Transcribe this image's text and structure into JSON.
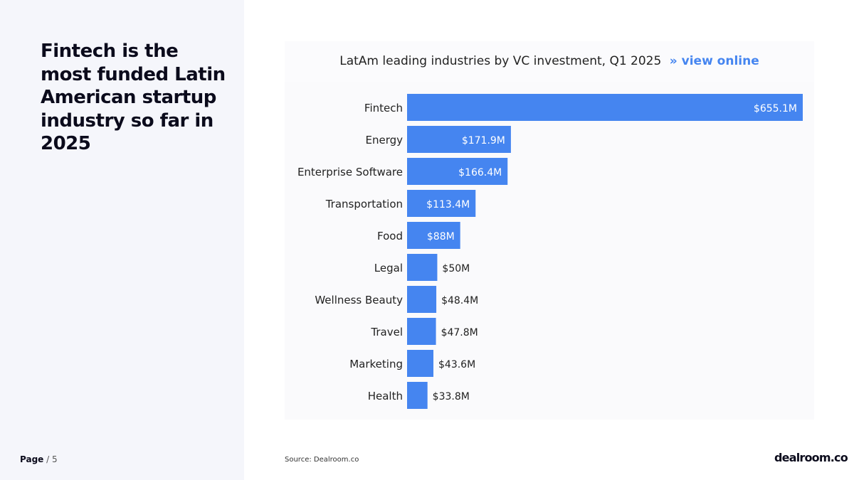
{
  "headline": "Fintech is the most funded Latin American startup industry so far in 2025",
  "page": {
    "label": "Page",
    "separator": " / ",
    "number": "5"
  },
  "chart_header": {
    "title": "LatAm leading industries by VC investment, Q1 2025",
    "link_arrow": "»",
    "link_label": "view online"
  },
  "source": "Source:  Dealroom.co",
  "logo": "dealroom.co",
  "colors": {
    "bar": "#4585f0",
    "panel": "#f5f6fb"
  },
  "chart_data": {
    "type": "bar",
    "orientation": "horizontal",
    "title": "LatAm leading industries by VC investment, Q1 2025",
    "xlabel": "",
    "ylabel": "",
    "unit": "$M",
    "categories": [
      "Fintech",
      "Energy",
      "Enterprise Software",
      "Transportation",
      "Food",
      "Legal",
      "Wellness Beauty",
      "Travel",
      "Marketing",
      "Health"
    ],
    "values": [
      655.1,
      171.9,
      166.4,
      113.4,
      88,
      50,
      48.4,
      47.8,
      43.6,
      33.8
    ],
    "labels": [
      "$655.1M",
      "$171.9M",
      "$166.4M",
      "$113.4M",
      "$88M",
      "$50M",
      "$48.4M",
      "$47.8M",
      "$43.6M",
      "$33.8M"
    ],
    "xlim": [
      0,
      655.1
    ],
    "grid": false,
    "legend": "none"
  }
}
